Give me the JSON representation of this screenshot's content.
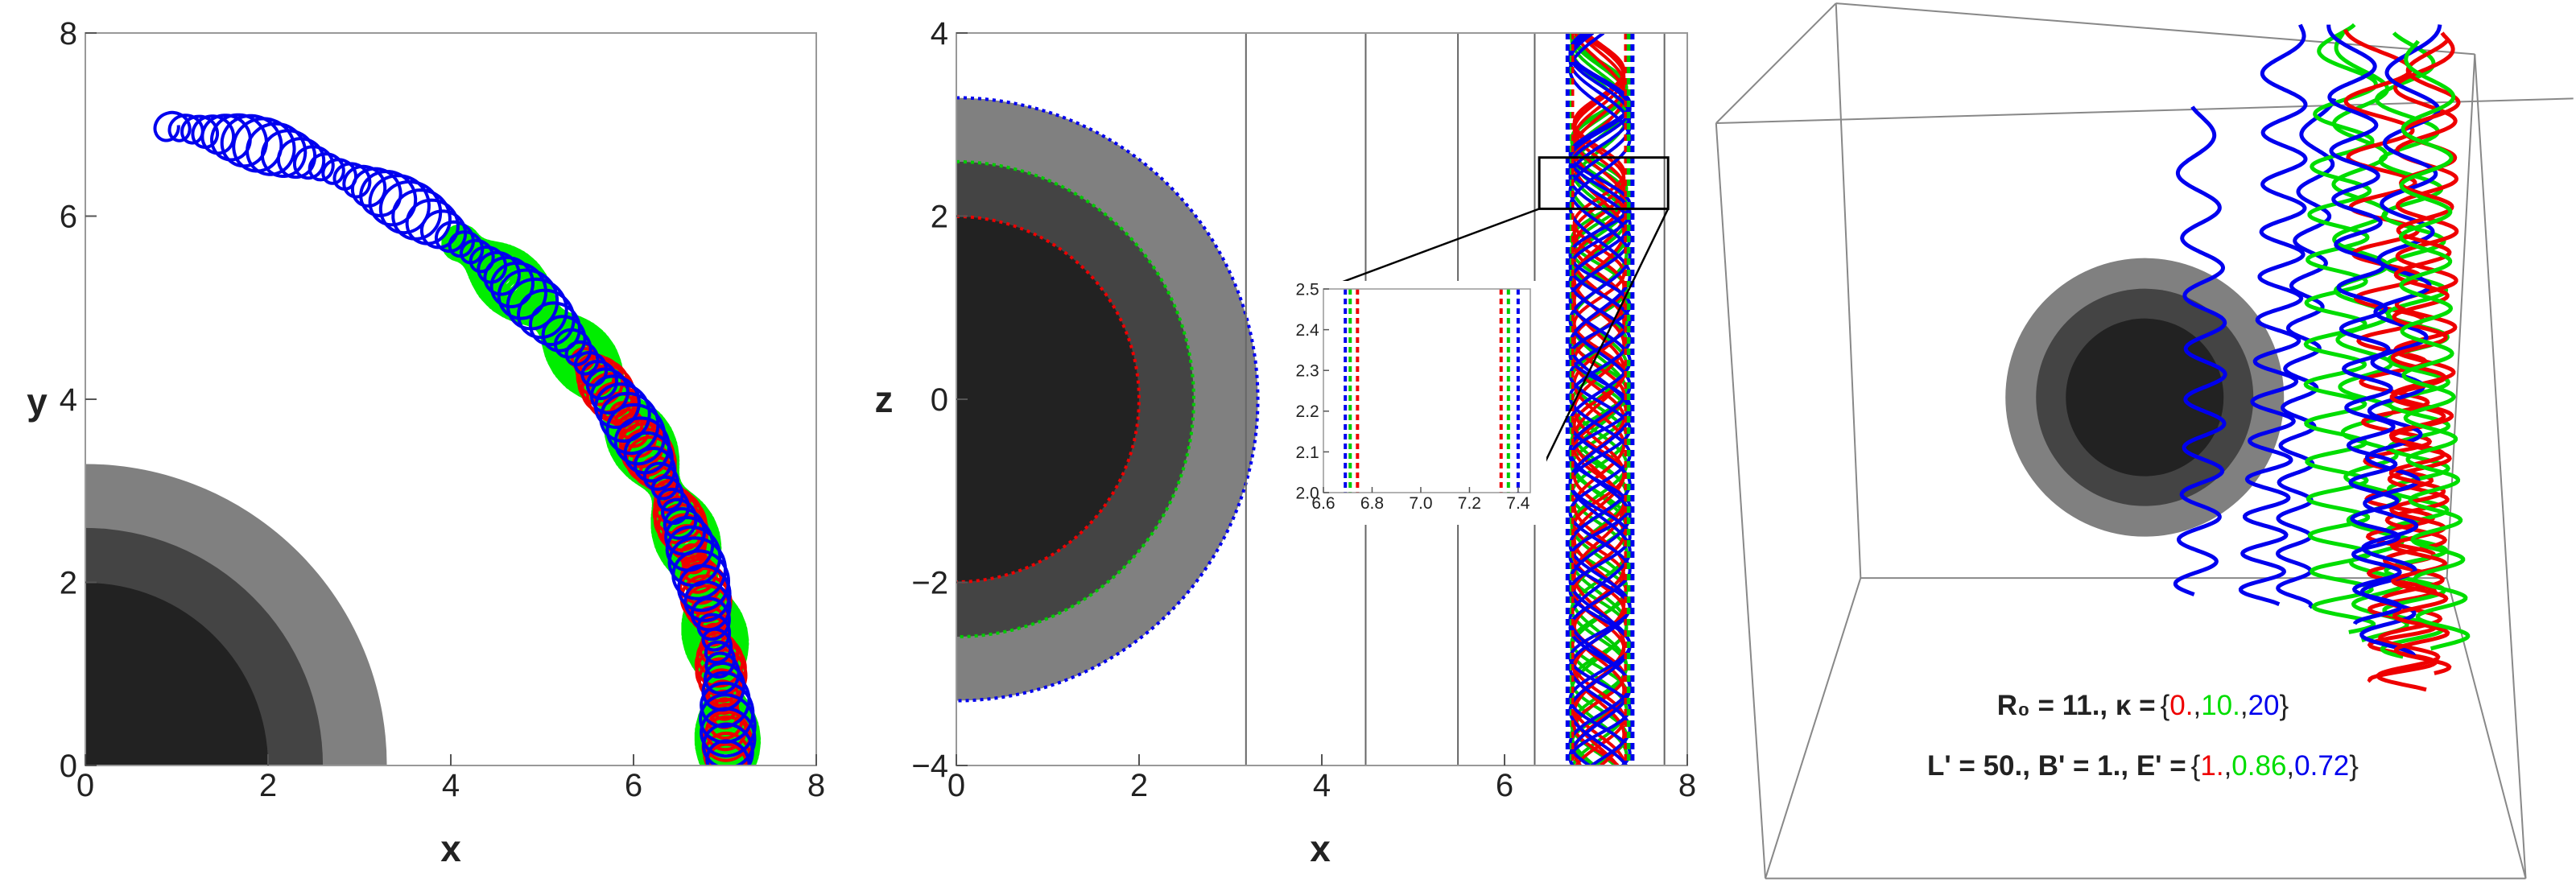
{
  "chart_data": [
    {
      "type": "orbit",
      "xlabel": "x",
      "ylabel": "y",
      "xlim": [
        0,
        8
      ],
      "ylim": [
        0,
        8
      ],
      "xticks": [
        0,
        2,
        4,
        6,
        8
      ],
      "yticks": [
        0,
        2,
        4,
        6,
        8
      ],
      "disk_radii": [
        2,
        2.6,
        3.3
      ],
      "disk_colors": [
        "#222222",
        "#444444",
        "#808080"
      ],
      "series": [
        {
          "color": "#00ee00",
          "edges": [
            6.71,
            7.36
          ]
        },
        {
          "color": "#ee0000",
          "edges": [
            6.74,
            7.33
          ]
        },
        {
          "color": "#0000ee",
          "edges": [
            6.69,
            7.4
          ]
        }
      ]
    },
    {
      "type": "section",
      "xlabel": "x",
      "ylabel": "z",
      "xlim": [
        0,
        8
      ],
      "ylim": [
        -4,
        4
      ],
      "xticks": [
        0,
        2,
        4,
        6,
        8
      ],
      "yticks": [
        {
          "value": -4,
          "label": "−4"
        },
        {
          "value": -2,
          "label": "−2"
        },
        0,
        2,
        4
      ],
      "vlines": [
        3.17,
        4.48,
        5.49,
        6.33,
        7.75
      ],
      "disk_radii": [
        2,
        2.6,
        3.3
      ],
      "disk_colors": [
        "#222222",
        "#444444",
        "#808080"
      ],
      "series": [
        {
          "color": "#ee0000",
          "edges": [
            6.74,
            7.33
          ]
        },
        {
          "color": "#00cc00",
          "edges": [
            6.71,
            7.36
          ]
        },
        {
          "color": "#0000ee",
          "edges": [
            6.69,
            7.4
          ]
        }
      ],
      "inset": {
        "xlim": [
          6.6,
          7.45
        ],
        "ylim": [
          2,
          2.5
        ],
        "xticks": [
          6.6,
          6.8,
          {
            "value": 7,
            "label": "7.0"
          },
          7.2,
          7.4
        ],
        "yticks": [
          {
            "value": 2,
            "label": "2.0"
          },
          2.1,
          2.2,
          2.3,
          2.4,
          2.5
        ]
      }
    },
    {
      "type": "box3d",
      "legend": {
        "line1_prefix": "R₀ = 11.,  κ =",
        "kappa": [
          "0.",
          "10.",
          "20"
        ],
        "line2_prefix": "L' = 50., B' = 1., E' =",
        "energy": [
          "1.",
          "0.86",
          "0.72"
        ],
        "brace_open": "{",
        "brace_close": "}",
        "separator": ",",
        "colors": [
          "#ee0000",
          "#00dd00",
          "#0000ee"
        ]
      },
      "disk_colors": [
        "#222222",
        "#444444",
        "#808080"
      ]
    }
  ]
}
